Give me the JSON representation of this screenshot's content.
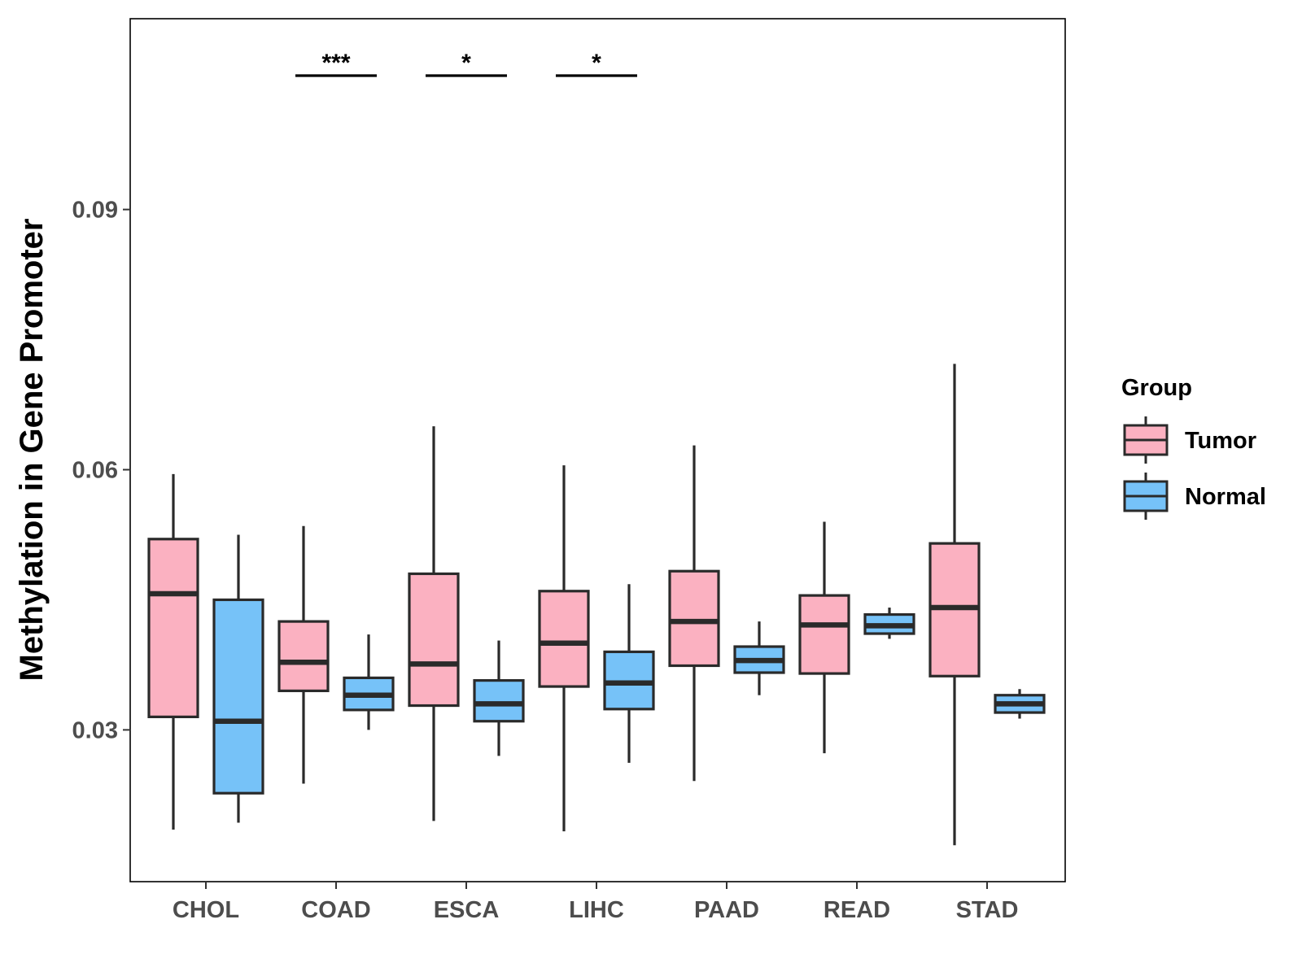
{
  "chart_data": {
    "type": "boxplot",
    "title": "",
    "xlabel": "",
    "ylabel": "Methylation in Gene Promoter",
    "ylim": [
      0.0125,
      0.112
    ],
    "yticks": [
      0.03,
      0.06,
      0.09
    ],
    "ytick_labels": [
      "0.03",
      "0.06",
      "0.09"
    ],
    "categories": [
      "CHOL",
      "COAD",
      "ESCA",
      "LIHC",
      "PAAD",
      "READ",
      "STAD"
    ],
    "legend": {
      "title": "Group",
      "placement": "right",
      "entries": [
        {
          "name": "Tumor",
          "color": "#FBB1C1"
        },
        {
          "name": "Normal",
          "color": "#76C2F8"
        }
      ]
    },
    "series": [
      {
        "name": "Tumor",
        "color": "#FBB1C1",
        "boxes": [
          {
            "category": "CHOL",
            "min": 0.0185,
            "q1": 0.0315,
            "median": 0.0457,
            "q3": 0.052,
            "max": 0.0595
          },
          {
            "category": "COAD",
            "min": 0.0238,
            "q1": 0.0345,
            "median": 0.0378,
            "q3": 0.0425,
            "max": 0.0535
          },
          {
            "category": "ESCA",
            "min": 0.0195,
            "q1": 0.0328,
            "median": 0.0376,
            "q3": 0.048,
            "max": 0.065
          },
          {
            "category": "LIHC",
            "min": 0.0183,
            "q1": 0.035,
            "median": 0.04,
            "q3": 0.046,
            "max": 0.0605
          },
          {
            "category": "PAAD",
            "min": 0.0241,
            "q1": 0.0374,
            "median": 0.0425,
            "q3": 0.0483,
            "max": 0.0628
          },
          {
            "category": "READ",
            "min": 0.0273,
            "q1": 0.0365,
            "median": 0.0421,
            "q3": 0.0455,
            "max": 0.054
          },
          {
            "category": "STAD",
            "min": 0.0167,
            "q1": 0.0362,
            "median": 0.0441,
            "q3": 0.0515,
            "max": 0.0722
          }
        ]
      },
      {
        "name": "Normal",
        "color": "#76C2F8",
        "boxes": [
          {
            "category": "CHOL",
            "min": 0.0193,
            "q1": 0.0227,
            "median": 0.031,
            "q3": 0.045,
            "max": 0.0525
          },
          {
            "category": "COAD",
            "min": 0.03,
            "q1": 0.0323,
            "median": 0.034,
            "q3": 0.036,
            "max": 0.041
          },
          {
            "category": "ESCA",
            "min": 0.027,
            "q1": 0.031,
            "median": 0.033,
            "q3": 0.0357,
            "max": 0.0403
          },
          {
            "category": "LIHC",
            "min": 0.0262,
            "q1": 0.0324,
            "median": 0.0354,
            "q3": 0.039,
            "max": 0.0468
          },
          {
            "category": "PAAD",
            "min": 0.034,
            "q1": 0.0366,
            "median": 0.038,
            "q3": 0.0396,
            "max": 0.0425
          },
          {
            "category": "READ",
            "min": 0.0405,
            "q1": 0.0411,
            "median": 0.042,
            "q3": 0.0433,
            "max": 0.0441
          },
          {
            "category": "STAD",
            "min": 0.0313,
            "q1": 0.032,
            "median": 0.033,
            "q3": 0.034,
            "max": 0.0347
          }
        ]
      }
    ],
    "significance": [
      {
        "category": "COAD",
        "label": "***"
      },
      {
        "category": "ESCA",
        "label": "*"
      },
      {
        "category": "LIHC",
        "label": "*"
      }
    ]
  }
}
